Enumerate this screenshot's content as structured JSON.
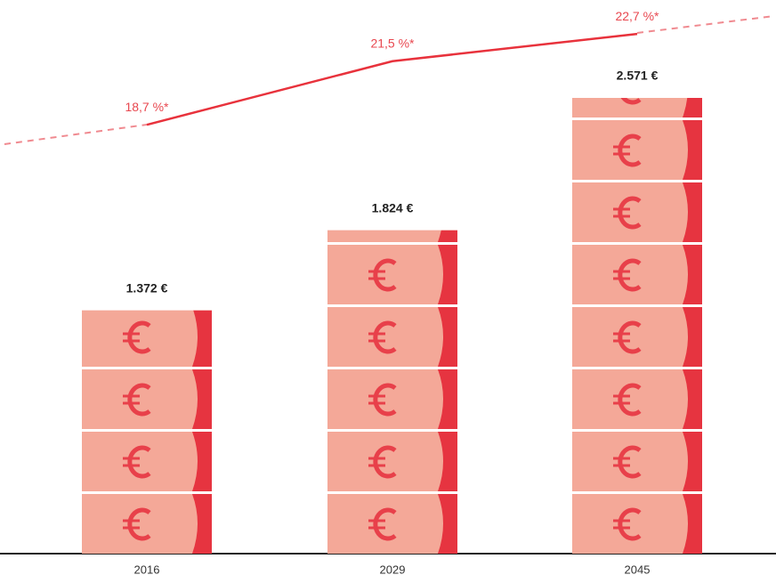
{
  "chart_data": {
    "type": "bar",
    "categories": [
      "2016",
      "2029",
      "2045"
    ],
    "series": [
      {
        "type": "bar",
        "color": "#f4a898",
        "values": [
          1372,
          1824,
          2571
        ],
        "value_labels": [
          "1.372 €",
          "1.824 €",
          "2.571 €"
        ]
      },
      {
        "type": "line",
        "color": "#e8323c",
        "values": [
          18.7,
          21.5,
          22.7
        ],
        "value_labels": [
          "18,7 %*",
          "21,5 %*",
          "22,7 %*"
        ]
      }
    ]
  }
}
